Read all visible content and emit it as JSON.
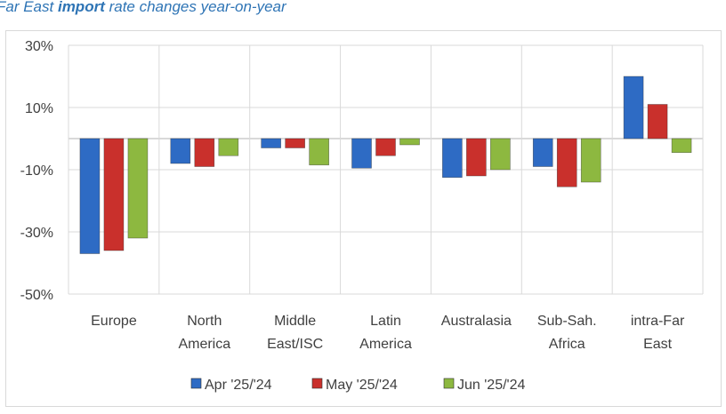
{
  "title": {
    "prefix": "Far East ",
    "bold": "import",
    "suffix": " rate changes year-on-year"
  },
  "colors": {
    "series": [
      "#2e6bc4",
      "#c9302c",
      "#8db840"
    ],
    "grid": "#d9d9d9",
    "text": "#404040",
    "title": "#2e74b5"
  },
  "chart_data": {
    "type": "bar",
    "title": "Far East import rate changes year-on-year",
    "categories": [
      [
        "Europe"
      ],
      [
        "North",
        "America"
      ],
      [
        "Middle",
        "East/ISC"
      ],
      [
        "Latin",
        "America"
      ],
      [
        "Australasia"
      ],
      [
        "Sub-Sah.",
        "Africa"
      ],
      [
        "intra-Far",
        "East"
      ]
    ],
    "series": [
      {
        "name": "Apr '25/'24",
        "values": [
          -37,
          -8,
          -3,
          -9.5,
          -12.5,
          -9,
          20
        ]
      },
      {
        "name": "May '25/'24",
        "values": [
          -36,
          -9,
          -3,
          -5.5,
          -12,
          -15.5,
          11
        ]
      },
      {
        "name": "Jun '25/'24",
        "values": [
          -32,
          -5.5,
          -8.5,
          -2,
          -10,
          -14,
          -4.5
        ]
      }
    ],
    "yticks": [
      "30%",
      "10%",
      "-10%",
      "-30%",
      "-50%"
    ],
    "ytick_values": [
      30,
      10,
      -10,
      -30,
      -50
    ],
    "ylim": [
      -50,
      30
    ],
    "grid": true,
    "legend": "bottom"
  }
}
